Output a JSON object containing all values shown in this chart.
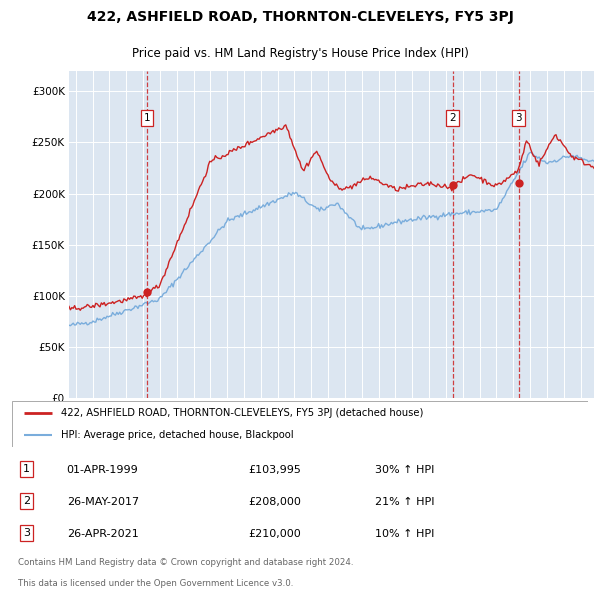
{
  "title": "422, ASHFIELD ROAD, THORNTON-CLEVELEYS, FY5 3PJ",
  "subtitle": "Price paid vs. HM Land Registry's House Price Index (HPI)",
  "legend_line1": "422, ASHFIELD ROAD, THORNTON-CLEVELEYS, FY5 3PJ (detached house)",
  "legend_line2": "HPI: Average price, detached house, Blackpool",
  "footer_line1": "Contains HM Land Registry data © Crown copyright and database right 2024.",
  "footer_line2": "This data is licensed under the Open Government Licence v3.0.",
  "transactions": [
    {
      "num": 1,
      "date": "01-APR-1999",
      "price": "£103,995",
      "change": "30% ↑ HPI",
      "year": 1999.25
    },
    {
      "num": 2,
      "date": "26-MAY-2017",
      "price": "£208,000",
      "change": "21% ↑ HPI",
      "year": 2017.4
    },
    {
      "num": 3,
      "date": "26-APR-2021",
      "price": "£210,000",
      "change": "10% ↑ HPI",
      "year": 2021.32
    }
  ],
  "sale_prices": [
    103995,
    208000,
    210000
  ],
  "hpi_color": "#7aaddc",
  "price_color": "#cc2222",
  "background_color": "#ffffff",
  "plot_bg_color": "#dce6f1",
  "grid_color": "#ffffff",
  "dashed_color": "#cc2222",
  "marker_color": "#cc2222",
  "ylim": [
    0,
    320000
  ],
  "xlim_start": 1994.6,
  "xlim_end": 2025.8,
  "yticks": [
    0,
    50000,
    100000,
    150000,
    200000,
    250000,
    300000
  ],
  "year_start": 1995,
  "year_end": 2025
}
